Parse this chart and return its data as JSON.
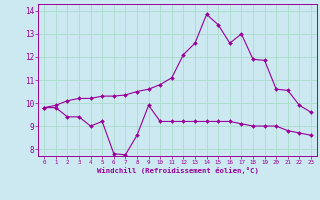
{
  "x": [
    0,
    1,
    2,
    3,
    4,
    5,
    6,
    7,
    8,
    9,
    10,
    11,
    12,
    13,
    14,
    15,
    16,
    17,
    18,
    19,
    20,
    21,
    22,
    23
  ],
  "temp": [
    9.8,
    9.9,
    10.1,
    10.2,
    10.2,
    10.3,
    10.3,
    10.35,
    10.5,
    10.6,
    10.8,
    11.1,
    12.1,
    12.6,
    13.85,
    13.4,
    12.6,
    13.0,
    11.9,
    11.85,
    10.6,
    10.55,
    9.9,
    9.6
  ],
  "windchill": [
    9.8,
    9.8,
    9.4,
    9.4,
    9.0,
    9.2,
    7.8,
    7.75,
    8.6,
    9.9,
    9.2,
    9.2,
    9.2,
    9.2,
    9.2,
    9.2,
    9.2,
    9.1,
    9.0,
    9.0,
    9.0,
    8.8,
    8.7,
    8.6
  ],
  "line_color": "#990099",
  "bg_color": "#cce8f0",
  "grid_color": "#aaddcc",
  "xlabel": "Windchill (Refroidissement éolien,°C)",
  "ylim": [
    7.7,
    14.3
  ],
  "xlim": [
    -0.5,
    23.5
  ],
  "yticks": [
    8,
    9,
    10,
    11,
    12,
    13,
    14
  ],
  "xticks": [
    0,
    1,
    2,
    3,
    4,
    5,
    6,
    7,
    8,
    9,
    10,
    11,
    12,
    13,
    14,
    15,
    16,
    17,
    18,
    19,
    20,
    21,
    22,
    23
  ]
}
